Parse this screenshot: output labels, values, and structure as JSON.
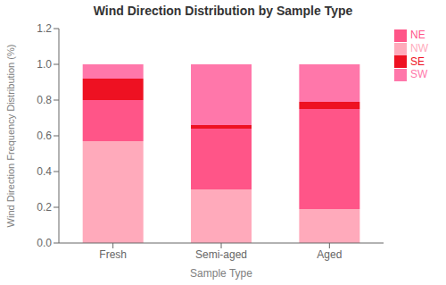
{
  "chart_data": {
    "type": "bar",
    "title": "Wind Direction Distribution by Sample Type",
    "xlabel": "Sample Type",
    "ylabel": "Wind Direction Frequency Distribution (%)",
    "categories": [
      "Fresh",
      "Semi-aged",
      "Aged"
    ],
    "series": [
      {
        "name": "NW",
        "color": "#FFAABB",
        "values": [
          0.57,
          0.3,
          0.19
        ]
      },
      {
        "name": "NE",
        "color": "#FF5588",
        "values": [
          0.23,
          0.34,
          0.56
        ]
      },
      {
        "name": "SE",
        "color": "#EE1122",
        "values": [
          0.12,
          0.02,
          0.04
        ]
      },
      {
        "name": "SW",
        "color": "#FF77AA",
        "values": [
          0.08,
          0.34,
          0.21
        ]
      }
    ],
    "stacked": true,
    "ylim": [
      0.0,
      1.2
    ],
    "yticks": [
      {
        "value": 0,
        "label": "0.0"
      },
      0.2,
      0.4,
      0.6,
      0.8,
      {
        "value": 1,
        "label": "1.0"
      },
      1.2
    ],
    "grid": false,
    "legend": "upper right"
  }
}
